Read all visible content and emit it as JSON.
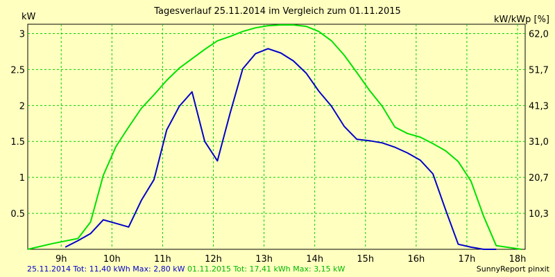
{
  "chart_data": {
    "type": "line",
    "title": "Tagesverlauf 25.11.2014 im Vergleich zum 01.11.2015",
    "ylabel": "kW",
    "ylabel_right": "kW/kWp [%]",
    "ylim": [
      0,
      3.13
    ],
    "xlim": [
      8.34,
      18.15
    ],
    "grid": true,
    "x_ticks": [
      9,
      10,
      11,
      12,
      13,
      14,
      15,
      16,
      17,
      18
    ],
    "x_tick_labels": [
      "9h",
      "10h",
      "11h",
      "12h",
      "13h",
      "14h",
      "15h",
      "16h",
      "17h",
      "18h"
    ],
    "y_ticks": [
      0.5,
      1,
      1.5,
      2,
      2.5,
      3
    ],
    "y_tick_labels": [
      "0.5",
      "1",
      "1.5",
      "2",
      "2.5",
      "3"
    ],
    "right_ticks": [
      0.5,
      1,
      1.5,
      2,
      2.5,
      3
    ],
    "right_tick_labels": [
      "10,3",
      "20,7",
      "31,0",
      "41,3",
      "51,7",
      "62,0"
    ],
    "series": [
      {
        "name": "25.11.2014",
        "color": "#0000c8",
        "points": [
          [
            9.08,
            0.03
          ],
          [
            9.33,
            0.12
          ],
          [
            9.58,
            0.22
          ],
          [
            9.83,
            0.41
          ],
          [
            10.08,
            0.36
          ],
          [
            10.33,
            0.31
          ],
          [
            10.58,
            0.68
          ],
          [
            10.83,
            0.97
          ],
          [
            11.08,
            1.66
          ],
          [
            11.33,
            1.99
          ],
          [
            11.58,
            2.19
          ],
          [
            11.83,
            1.5
          ],
          [
            12.08,
            1.23
          ],
          [
            12.33,
            1.89
          ],
          [
            12.58,
            2.51
          ],
          [
            12.83,
            2.72
          ],
          [
            13.08,
            2.79
          ],
          [
            13.33,
            2.73
          ],
          [
            13.58,
            2.62
          ],
          [
            13.83,
            2.45
          ],
          [
            14.08,
            2.2
          ],
          [
            14.33,
            1.99
          ],
          [
            14.58,
            1.71
          ],
          [
            14.83,
            1.53
          ],
          [
            15.08,
            1.51
          ],
          [
            15.33,
            1.48
          ],
          [
            15.58,
            1.42
          ],
          [
            15.83,
            1.34
          ],
          [
            16.08,
            1.24
          ],
          [
            16.33,
            1.05
          ],
          [
            16.58,
            0.55
          ],
          [
            16.83,
            0.07
          ],
          [
            17.08,
            0.03
          ],
          [
            17.33,
            0.0
          ],
          [
            17.58,
            0.0
          ]
        ]
      },
      {
        "name": "01.11.2015",
        "color": "#00e000",
        "points": [
          [
            8.34,
            0.0
          ],
          [
            8.83,
            0.08
          ],
          [
            9.33,
            0.15
          ],
          [
            9.58,
            0.38
          ],
          [
            9.83,
            1.03
          ],
          [
            10.08,
            1.43
          ],
          [
            10.33,
            1.7
          ],
          [
            10.58,
            1.96
          ],
          [
            10.83,
            2.15
          ],
          [
            11.08,
            2.35
          ],
          [
            11.33,
            2.52
          ],
          [
            11.58,
            2.65
          ],
          [
            11.83,
            2.78
          ],
          [
            12.08,
            2.9
          ],
          [
            12.33,
            2.96
          ],
          [
            12.58,
            3.03
          ],
          [
            12.83,
            3.08
          ],
          [
            13.08,
            3.11
          ],
          [
            13.33,
            3.12
          ],
          [
            13.58,
            3.12
          ],
          [
            13.83,
            3.1
          ],
          [
            14.08,
            3.03
          ],
          [
            14.33,
            2.9
          ],
          [
            14.58,
            2.7
          ],
          [
            14.83,
            2.46
          ],
          [
            15.08,
            2.21
          ],
          [
            15.33,
            1.99
          ],
          [
            15.58,
            1.7
          ],
          [
            15.83,
            1.61
          ],
          [
            16.08,
            1.56
          ],
          [
            16.33,
            1.47
          ],
          [
            16.58,
            1.37
          ],
          [
            16.83,
            1.22
          ],
          [
            17.08,
            0.95
          ],
          [
            17.33,
            0.46
          ],
          [
            17.58,
            0.05
          ],
          [
            18.08,
            0.0
          ]
        ]
      }
    ],
    "footer": {
      "series1": "25.11.2014 Tot: 11,40 kWh Max: 2,80 kW",
      "series2": "01.11.2015 Tot: 17,41 kWh Max: 3,15 kW"
    },
    "credit": "SunnyReport pinxit"
  }
}
